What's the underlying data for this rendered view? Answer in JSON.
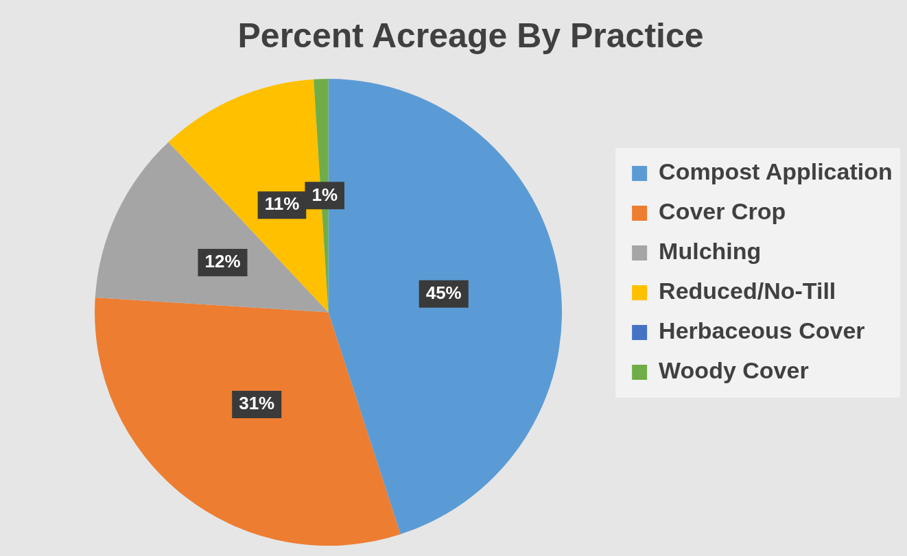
{
  "chart_data": {
    "type": "pie",
    "title": "Percent Acreage By Practice",
    "categories": [
      "Compost Application",
      "Cover Crop",
      "Mulching",
      "Reduced/No-Till",
      "Herbaceous Cover",
      "Woody Cover"
    ],
    "values": [
      45,
      31,
      12,
      11,
      0,
      1
    ],
    "colors": [
      "#5b9bd5",
      "#ed7d31",
      "#a5a5a5",
      "#ffc000",
      "#4472c4",
      "#70ad47"
    ],
    "value_labels": [
      "45%",
      "31%",
      "12%",
      "11%",
      null,
      "1%"
    ],
    "legend": "right"
  }
}
